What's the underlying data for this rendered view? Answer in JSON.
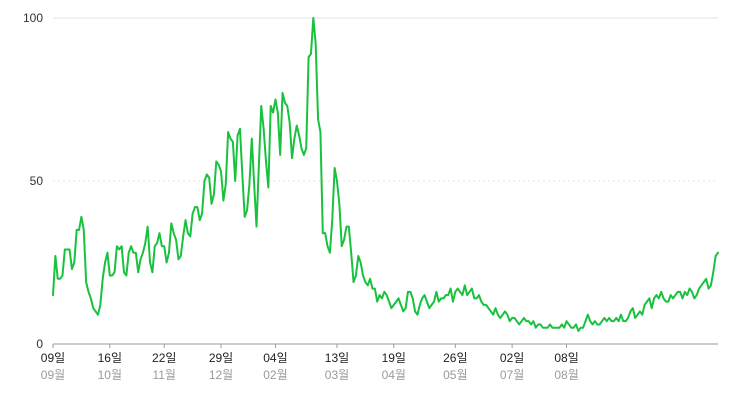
{
  "chart_data": {
    "type": "line",
    "title": "",
    "xlabel": "",
    "ylabel": "",
    "ylim": [
      0,
      100
    ],
    "grid": "horizontal",
    "yticks": [
      "0",
      "50",
      "100"
    ],
    "xticks": [
      {
        "day": "09일",
        "month": "09월"
      },
      {
        "day": "16일",
        "month": "10월"
      },
      {
        "day": "22일",
        "month": "11월"
      },
      {
        "day": "29일",
        "month": "12월"
      },
      {
        "day": "04일",
        "month": "02월"
      },
      {
        "day": "13일",
        "month": "03월"
      },
      {
        "day": "19일",
        "month": "04월"
      },
      {
        "day": "26일",
        "month": "05월"
      },
      {
        "day": "02일",
        "month": "07월"
      },
      {
        "day": "08일",
        "month": "08월"
      }
    ],
    "series": [
      {
        "color": "#19c23e",
        "values": [
          15,
          27,
          20,
          20,
          21,
          29,
          29,
          29,
          23,
          25,
          35,
          35,
          39,
          35,
          19,
          16,
          14,
          11,
          10,
          9,
          12,
          20,
          25,
          28,
          21,
          21,
          22,
          30,
          29,
          30,
          22,
          21,
          28,
          30,
          28,
          28,
          22,
          26,
          28,
          31,
          36,
          25,
          22,
          30,
          31,
          34,
          30,
          30,
          25,
          28,
          37,
          34,
          32,
          26,
          27,
          33,
          38,
          34,
          33,
          40,
          42,
          42,
          38,
          40,
          50,
          52,
          51,
          43,
          46,
          56,
          55,
          53,
          44,
          49,
          65,
          63,
          62,
          50,
          64,
          66,
          52,
          39,
          41,
          49,
          63,
          49,
          36,
          55,
          73,
          66,
          56,
          48,
          73,
          71,
          75,
          71,
          58,
          77,
          74,
          73,
          68,
          57,
          63,
          67,
          64,
          60,
          58,
          60,
          88,
          89,
          100,
          92,
          69,
          65,
          34,
          34,
          30,
          28,
          38,
          54,
          50,
          43,
          30,
          32,
          36,
          36,
          28,
          19,
          21,
          27,
          25,
          21,
          19,
          18,
          20,
          17,
          17,
          13,
          15,
          14,
          16,
          15,
          13,
          11,
          12,
          13,
          14,
          12,
          10,
          11,
          16,
          16,
          14,
          10,
          9,
          12,
          14,
          15,
          13,
          11,
          12,
          13,
          16,
          13,
          14,
          14,
          15,
          15,
          17,
          13,
          16,
          17,
          16,
          15,
          18,
          15,
          16,
          17,
          14,
          14,
          15,
          13,
          12,
          12,
          11,
          10,
          9,
          11,
          9,
          8,
          9,
          10,
          9,
          7,
          8,
          8,
          7,
          6,
          7,
          8,
          7,
          7,
          6,
          7,
          5,
          6,
          6,
          5,
          5,
          5,
          6,
          5,
          5,
          5,
          5,
          6,
          5,
          7,
          6,
          5,
          5,
          6,
          4,
          5,
          5,
          7,
          9,
          7,
          6,
          7,
          6,
          6,
          7,
          8,
          7,
          8,
          7,
          7,
          8,
          7,
          9,
          7,
          7,
          8,
          10,
          11,
          8,
          9,
          10,
          9,
          12,
          13,
          14,
          11,
          14,
          15,
          14,
          16,
          14,
          13,
          13,
          15,
          14,
          15,
          16,
          16,
          14,
          16,
          15,
          17,
          16,
          14,
          15,
          17,
          18,
          19,
          20,
          17,
          18,
          22,
          27,
          28
        ]
      }
    ]
  }
}
